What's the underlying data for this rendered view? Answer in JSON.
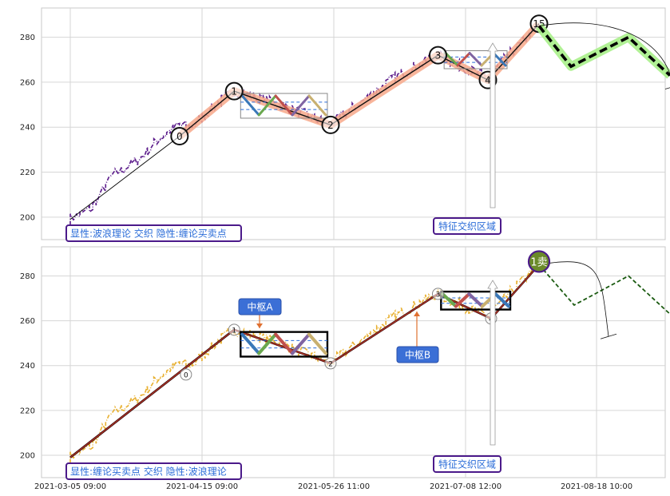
{
  "chart_data": {
    "type": "line",
    "x_tick_labels": [
      "2021-03-05 09:00",
      "2021-04-15 09:00",
      "2021-05-26 11:00",
      "2021-07-08 12:00",
      "2021-08-18 10:00"
    ],
    "x_tick_dates": [
      "2021-03-05",
      "2021-04-15",
      "2021-05-26",
      "2021-07-08",
      "2021-08-18"
    ],
    "ylim": [
      190,
      293
    ],
    "y_ticks": [
      200,
      220,
      240,
      260,
      280
    ],
    "grid": true,
    "colors": {
      "price_top": "#5a1a8a",
      "price_bottom": "#e8b030",
      "wave_fill": "#f7a88a",
      "wave_line": "#c0392b",
      "forecast": "#000000",
      "forecast_glow": "#a8f08a",
      "panel_border": "#c8c8c8",
      "label_border": "#4b1a8a",
      "label_text": "#2a6cd8",
      "callout_bg": "#3b6fd6",
      "sell_circle": "#6a8a2a"
    },
    "panels": [
      {
        "legend": "显性:波浪理论 交织 隐性:缠论买卖点",
        "zone_label": "特征交织区域",
        "points": [
          {
            "label": "0",
            "x": "2021-04-08",
            "y": 236
          },
          {
            "label": "1",
            "x": "2021-04-25",
            "y": 256
          },
          {
            "label": "2",
            "x": "2021-05-25",
            "y": 241
          },
          {
            "label": "3",
            "x": "2021-06-29",
            "y": 272
          },
          {
            "label": "4",
            "x": "2021-07-15",
            "y": 261
          },
          {
            "label": "15",
            "x": "2021-07-31",
            "y": 286
          }
        ],
        "forecast": [
          {
            "x": "2021-07-31",
            "y": 285
          },
          {
            "x": "2021-08-10",
            "y": 267
          },
          {
            "x": "2021-08-28",
            "y": 280
          },
          {
            "x": "2021-09-10",
            "y": 263
          }
        ],
        "pivots": [
          {
            "x0": "2021-04-27",
            "x1": "2021-05-24",
            "y0": 244,
            "y1": 255
          },
          {
            "x0": "2021-07-01",
            "x1": "2021-07-21",
            "y0": 266,
            "y1": 274
          }
        ]
      },
      {
        "legend": "显性:缠论买卖点 交织 隐性:波浪理论",
        "zone_label": "特征交织区域",
        "sell_label": "1卖",
        "pivot_labels": [
          "中枢A",
          "中枢B"
        ],
        "points": [
          {
            "label": "0",
            "x": "2021-04-10",
            "y": 236
          },
          {
            "label": "1",
            "x": "2021-04-25",
            "y": 256
          },
          {
            "label": "2",
            "x": "2021-05-25",
            "y": 241
          },
          {
            "label": "3",
            "x": "2021-06-29",
            "y": 272
          },
          {
            "label": "4",
            "x": "2021-07-16",
            "y": 261
          }
        ],
        "sell_point": {
          "x": "2021-07-31",
          "y": 285
        },
        "forecast": [
          {
            "x": "2021-07-31",
            "y": 285
          },
          {
            "x": "2021-08-11",
            "y": 267
          },
          {
            "x": "2021-08-28",
            "y": 280
          },
          {
            "x": "2021-09-10",
            "y": 263
          }
        ],
        "pivots": [
          {
            "x0": "2021-04-27",
            "x1": "2021-05-24",
            "y0": 244,
            "y1": 255
          },
          {
            "x0": "2021-06-30",
            "x1": "2021-07-22",
            "y0": 265,
            "y1": 273
          }
        ]
      }
    ]
  }
}
